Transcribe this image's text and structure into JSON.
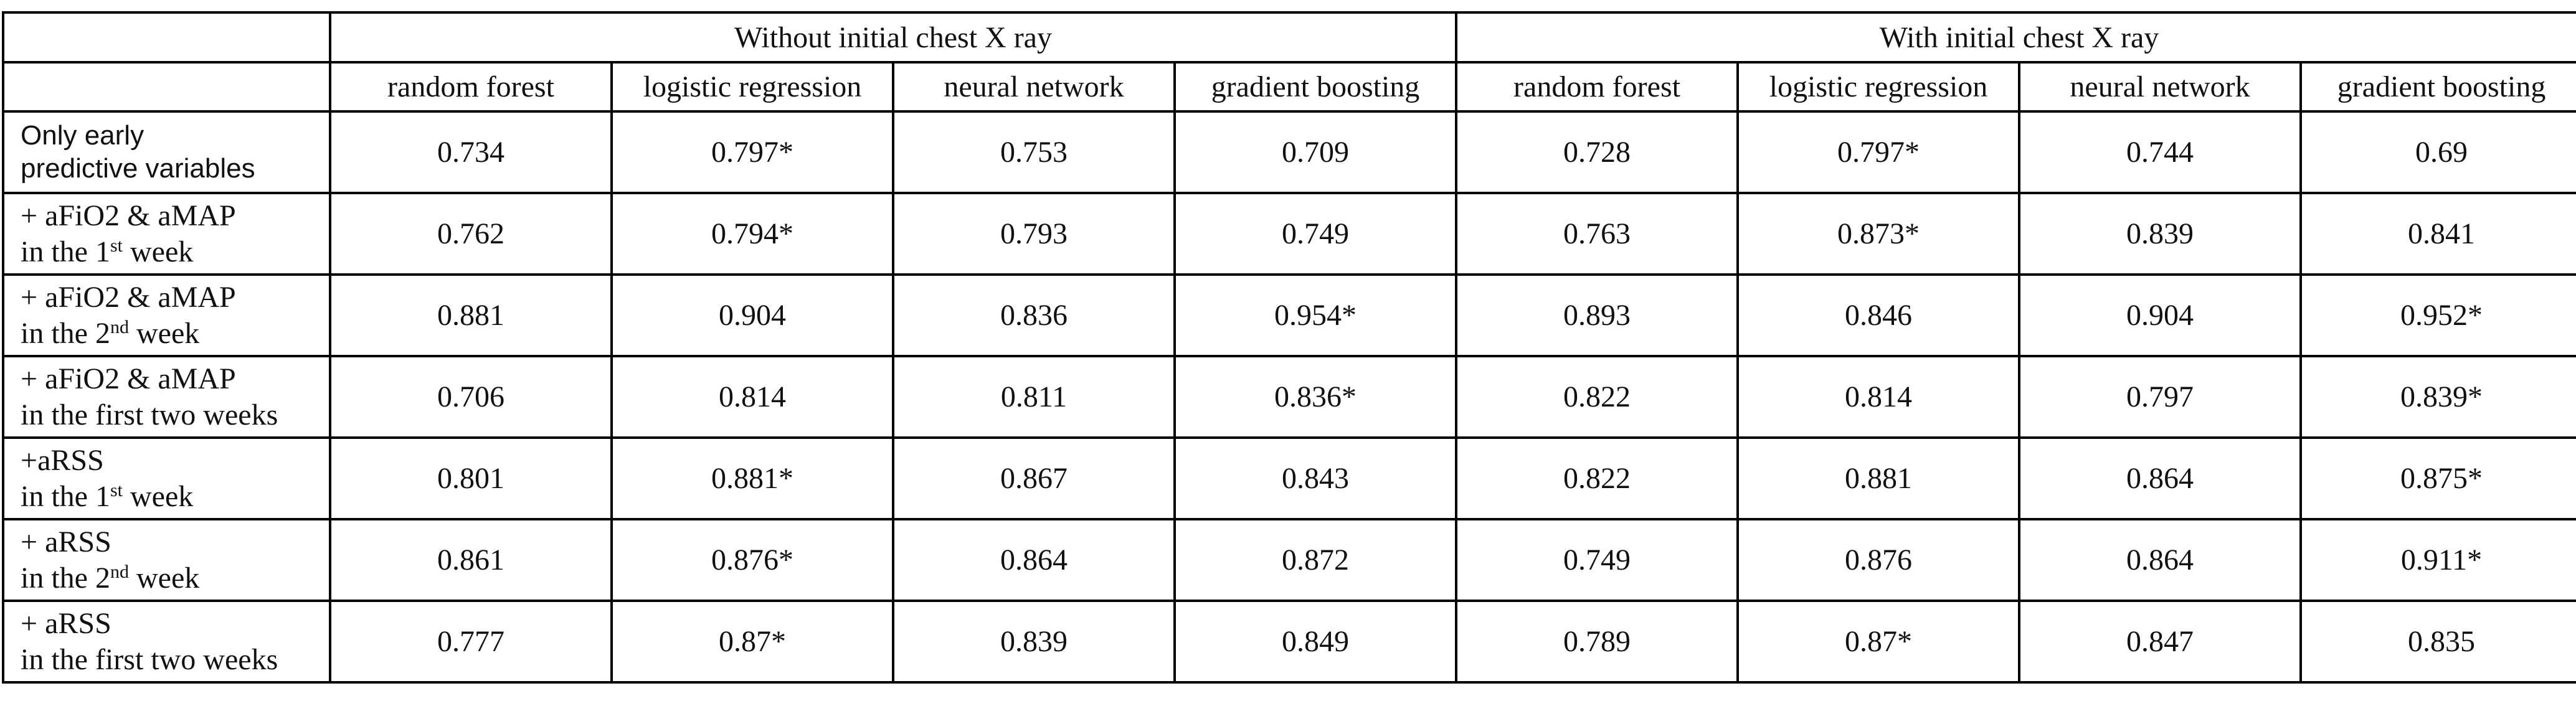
{
  "groups": [
    "Without initial chest X ray",
    "With initial chest X ray"
  ],
  "models": [
    "random forest",
    "logistic regression",
    "neural network",
    "gradient boosting",
    "random forest",
    "logistic regression",
    "neural network",
    "gradient boosting"
  ],
  "rows": [
    {
      "line1": "Only early",
      "line2": "predictive variables",
      "values": [
        "0.734",
        "0.797*",
        "0.753",
        "0.709",
        "0.728",
        "0.797*",
        "0.744",
        "0.69"
      ]
    },
    {
      "line1": "+ aFiO2 & aMAP",
      "line2": "in the 1",
      "sup": "st",
      "line2_end": " week",
      "values": [
        "0.762",
        "0.794*",
        "0.793",
        "0.749",
        "0.763",
        "0.873*",
        "0.839",
        "0.841"
      ]
    },
    {
      "line1": "+ aFiO2 & aMAP",
      "line2": "in the 2",
      "sup": "nd",
      "line2_end": " week",
      "values": [
        "0.881",
        "0.904",
        "0.836",
        "0.954*",
        "0.893",
        "0.846",
        "0.904",
        "0.952*"
      ]
    },
    {
      "line1": "+ aFiO2 & aMAP",
      "line2": "in the first two weeks",
      "values": [
        "0.706",
        "0.814",
        "0.811",
        "0.836*",
        "0.822",
        "0.814",
        "0.797",
        "0.839*"
      ]
    },
    {
      "line1": "+aRSS",
      "line2": "in the 1",
      "sup": "st",
      "line2_end": " week",
      "values": [
        "0.801",
        "0.881*",
        "0.867",
        "0.843",
        "0.822",
        "0.881",
        "0.864",
        "0.875*"
      ]
    },
    {
      "line1": "+ aRSS",
      "line2": "in the 2",
      "sup": "nd",
      "line2_end": " week",
      "values": [
        "0.861",
        "0.876*",
        "0.864",
        "0.872",
        "0.749",
        "0.876",
        "0.864",
        "0.911*"
      ]
    },
    {
      "line1": "+ aRSS",
      "line2": "in the first two weeks",
      "values": [
        "0.777",
        "0.87*",
        "0.839",
        "0.849",
        "0.789",
        "0.87*",
        "0.847",
        "0.835"
      ]
    }
  ]
}
